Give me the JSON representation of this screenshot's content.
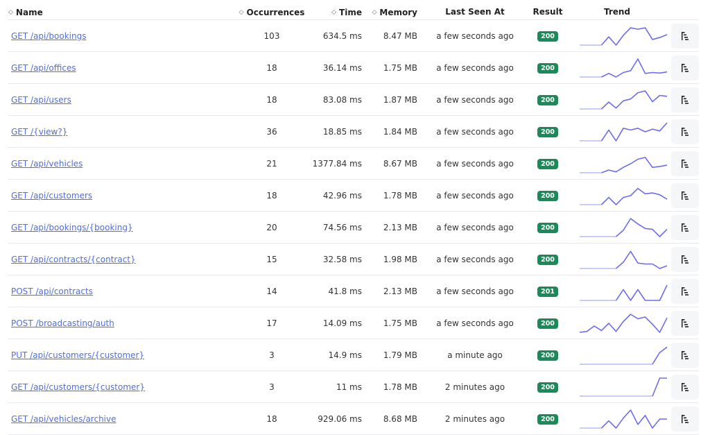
{
  "headers": {
    "name": "Name",
    "occurrences": "Occurrences",
    "time": "Time",
    "memory": "Memory",
    "last_seen": "Last Seen At",
    "result": "Result",
    "trend": "Trend"
  },
  "colors": {
    "link": "#4e6de6",
    "badge": "#1b8a58",
    "trend_line": "#6b6cf0",
    "trend_base": "#b9bbf5"
  },
  "rows": [
    {
      "name": "GET /api/bookings",
      "occurrences": "103",
      "time": "634.5 ms",
      "memory": "8.47 MB",
      "last_seen": "a few seconds ago",
      "result": "200",
      "trend": [
        0,
        0,
        0,
        0,
        0.46,
        0,
        0.54,
        0.96,
        0.88,
        0.96,
        0.31,
        0.42,
        0.58
      ]
    },
    {
      "name": "GET /api/offices",
      "occurrences": "18",
      "time": "36.14 ms",
      "memory": "1.75 MB",
      "last_seen": "a few seconds ago",
      "result": "200",
      "trend": [
        0,
        0,
        0,
        0,
        0.2,
        0,
        0.25,
        0.35,
        1,
        0.2,
        0.25,
        0.22,
        0.28
      ]
    },
    {
      "name": "GET /api/users",
      "occurrences": "18",
      "time": "83.08 ms",
      "memory": "1.87 MB",
      "last_seen": "a few seconds ago",
      "result": "200",
      "trend": [
        0,
        0,
        0,
        0,
        0.38,
        0.05,
        0.45,
        0.55,
        0.9,
        1,
        0.4,
        0.75,
        0.7
      ]
    },
    {
      "name": "GET /{view?}",
      "occurrences": "36",
      "time": "18.85 ms",
      "memory": "1.84 MB",
      "last_seen": "a few seconds ago",
      "result": "200",
      "trend": [
        0,
        0,
        0,
        0,
        0.6,
        0,
        0.7,
        0.6,
        0.7,
        0.5,
        0.65,
        0.55,
        1
      ]
    },
    {
      "name": "GET /api/vehicles",
      "occurrences": "21",
      "time": "1377.84 ms",
      "memory": "8.67 MB",
      "last_seen": "a few seconds ago",
      "result": "200",
      "trend": [
        0,
        0,
        0,
        0,
        0.15,
        0.05,
        0.3,
        0.5,
        0.75,
        0.85,
        0.3,
        0.35,
        0.42
      ]
    },
    {
      "name": "GET /api/customers",
      "occurrences": "18",
      "time": "42.96 ms",
      "memory": "1.78 MB",
      "last_seen": "a few seconds ago",
      "result": "200",
      "trend": [
        0,
        0,
        0,
        0,
        0.4,
        0,
        0.4,
        0.5,
        0.9,
        0.6,
        0.65,
        0.55,
        0.3
      ]
    },
    {
      "name": "GET /api/bookings/{booking}",
      "occurrences": "20",
      "time": "74.56 ms",
      "memory": "2.13 MB",
      "last_seen": "a few seconds ago",
      "result": "200",
      "trend": [
        0,
        0,
        0,
        0,
        0,
        0,
        0.35,
        1,
        0.7,
        0.45,
        0.4,
        0,
        0.4
      ]
    },
    {
      "name": "GET /api/contracts/{contract}",
      "occurrences": "15",
      "time": "32.58 ms",
      "memory": "1.98 MB",
      "last_seen": "a few seconds ago",
      "result": "200",
      "trend": [
        0,
        0,
        0,
        0,
        0,
        0,
        0.35,
        0.95,
        0.3,
        0.25,
        0.25,
        0,
        0.15
      ]
    },
    {
      "name": "POST /api/contracts",
      "occurrences": "14",
      "time": "41.8 ms",
      "memory": "2.13 MB",
      "last_seen": "a few seconds ago",
      "result": "201",
      "trend": [
        0,
        0,
        0,
        0,
        0,
        0,
        0.6,
        0,
        0.6,
        0,
        0,
        0,
        0.85
      ]
    },
    {
      "name": "POST /broadcasting/auth",
      "occurrences": "17",
      "time": "14.09 ms",
      "memory": "1.75 MB",
      "last_seen": "a few seconds ago",
      "result": "200",
      "trend": [
        0,
        0.05,
        0.35,
        0.1,
        0.5,
        0.05,
        0.6,
        1,
        0.75,
        0.85,
        0.45,
        0,
        0.8
      ]
    },
    {
      "name": "PUT /api/customers/{customer}",
      "occurrences": "3",
      "time": "14.9 ms",
      "memory": "1.79 MB",
      "last_seen": "a minute ago",
      "result": "200",
      "trend": [
        0,
        0,
        0,
        0,
        0,
        0,
        0,
        0,
        0,
        0,
        0,
        0.65,
        0.95
      ]
    },
    {
      "name": "GET /api/customers/{customer}",
      "occurrences": "3",
      "time": "11 ms",
      "memory": "1.78 MB",
      "last_seen": "2 minutes ago",
      "result": "200",
      "trend": [
        0,
        0,
        0,
        0,
        0,
        0,
        0,
        0,
        0,
        0,
        0,
        1,
        1
      ]
    },
    {
      "name": "GET /api/vehicles/archive",
      "occurrences": "18",
      "time": "929.06 ms",
      "memory": "8.68 MB",
      "last_seen": "2 minutes ago",
      "result": "200",
      "trend": [
        0,
        0,
        0,
        0,
        0.4,
        0,
        0.55,
        1,
        0.2,
        0.7,
        0,
        0.5,
        0.5
      ]
    }
  ]
}
